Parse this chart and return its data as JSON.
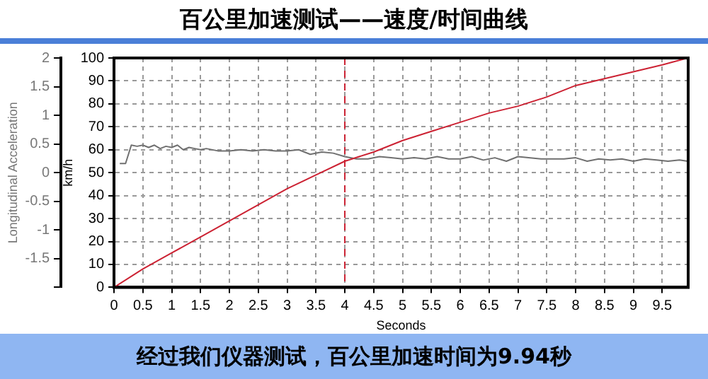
{
  "chart_data": {
    "type": "line",
    "title": "百公里加速测试——速度/时间曲线",
    "xlabel": "Seconds",
    "ylabel": "km/h",
    "y2label": "Longitudinal Acceleration",
    "annotations": [
      "经过我们仪器测试，百公里加速时间为9.94秒"
    ],
    "xlim": [
      0,
      9.95
    ],
    "xticks": [
      0,
      0.5,
      1,
      1.5,
      2,
      2.5,
      3,
      3.5,
      4,
      4.5,
      5,
      5.5,
      6,
      6.5,
      7,
      7.5,
      8,
      8.5,
      9,
      9.5
    ],
    "ylim": [
      0,
      100
    ],
    "yticks": [
      0,
      10,
      20,
      30,
      40,
      50,
      60,
      70,
      80,
      90,
      100
    ],
    "y2lim": [
      -2,
      2
    ],
    "y2ticks": [
      {
        "value": -2,
        "label": null
      },
      -1.5,
      -1,
      -0.5,
      0,
      0.5,
      1,
      1.5,
      2
    ],
    "grid": true,
    "legend": false,
    "marker": "none",
    "line_style": "solid",
    "ref_lines": [
      {
        "axis": "x",
        "value": 4,
        "color": "#cc2233",
        "line_style": "dashed"
      }
    ],
    "series": [
      {
        "color": "#cc2233",
        "x": [
          0,
          0.5,
          1,
          1.5,
          2,
          2.5,
          3,
          3.5,
          4,
          4.5,
          5,
          5.5,
          6,
          6.5,
          7,
          7.5,
          8,
          8.5,
          9,
          9.5,
          9.94
        ],
        "values": [
          0,
          8,
          15,
          22,
          29,
          36,
          43,
          49,
          55,
          59,
          64,
          68,
          72,
          76,
          79,
          83,
          88,
          91,
          94,
          97,
          100
        ]
      },
      {
        "color": "#707070",
        "axis": "y2",
        "x": [
          0.1,
          0.2,
          0.3,
          0.4,
          0.5,
          0.6,
          0.7,
          0.8,
          0.9,
          1,
          1.1,
          1.2,
          1.3,
          1.4,
          1.5,
          1.6,
          1.8,
          2,
          2.2,
          2.4,
          2.6,
          2.8,
          3,
          3.2,
          3.4,
          3.6,
          3.8,
          4,
          4.2,
          4.4,
          4.6,
          4.8,
          5,
          5.2,
          5.4,
          5.6,
          5.8,
          6,
          6.2,
          6.4,
          6.6,
          6.8,
          7,
          7.4,
          7.8,
          8,
          8.2,
          8.4,
          8.6,
          8.8,
          9,
          9.2,
          9.4,
          9.6,
          9.8,
          9.94
        ],
        "values": [
          0.16,
          0.16,
          0.48,
          0.46,
          0.48,
          0.44,
          0.48,
          0.42,
          0.46,
          0.44,
          0.48,
          0.4,
          0.44,
          0.42,
          0.4,
          0.42,
          0.38,
          0.38,
          0.4,
          0.38,
          0.4,
          0.38,
          0.38,
          0.4,
          0.32,
          0.36,
          0.34,
          0.28,
          0.24,
          0.24,
          0.28,
          0.26,
          0.24,
          0.26,
          0.24,
          0.28,
          0.24,
          0.24,
          0.28,
          0.22,
          0.26,
          0.2,
          0.28,
          0.24,
          0.24,
          0.26,
          0.2,
          0.24,
          0.22,
          0.24,
          0.2,
          0.24,
          0.22,
          0.2,
          0.22,
          0.2
        ]
      }
    ]
  }
}
